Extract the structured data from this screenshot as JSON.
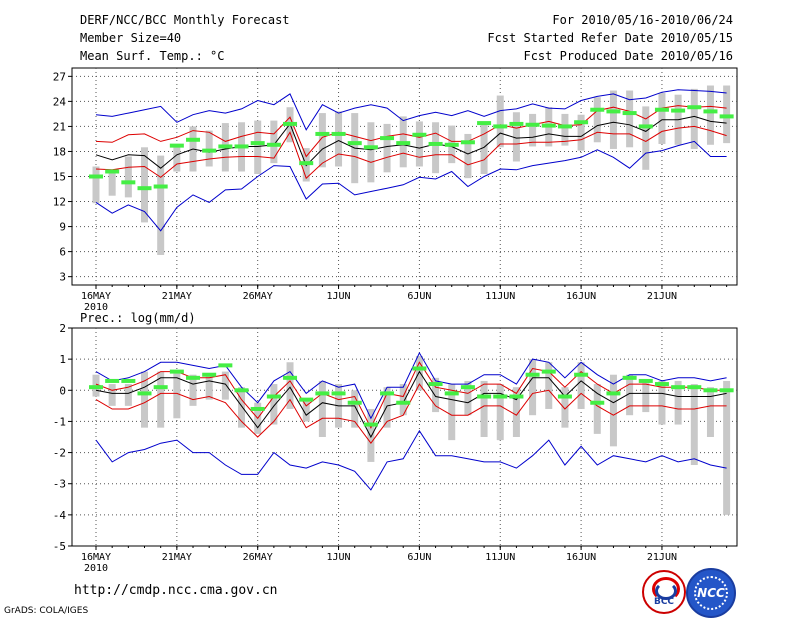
{
  "header": {
    "left_line1": "DERF/NCC/BCC Monthly Forecast",
    "left_line2": "Member Size=40",
    "left_line3": "Mean Surf. Temp.: °C",
    "right_line1": "For 2010/05/16-2010/06/24",
    "right_line2": "Fcst Started Refer Date 2010/05/15",
    "right_line3": "Fcst Produced Date 2010/05/16"
  },
  "panel2_label": "Prec.: log(mm/d)",
  "footer": {
    "url": "http://cmdp.ncc.cma.gov.cn",
    "grads": "GrADS: COLA/IGES",
    "logo1_text": "BCC",
    "logo2_text": "NCC"
  },
  "colors": {
    "mean": "#000000",
    "ensemble": "#dd0000",
    "extreme": "#0000cc",
    "obs_green": "#44ee44",
    "spread_bar": "#c8c8c8"
  },
  "chart_data": [
    {
      "type": "line",
      "title": "Mean Surf. Temp.: °C",
      "x_tick_labels": [
        "16MAY",
        "21MAY",
        "26MAY",
        "1JUN",
        "6JUN",
        "11JUN",
        "16JUN",
        "21JUN"
      ],
      "x_year_label": "2010",
      "x_days": 40,
      "ylim": [
        2,
        28
      ],
      "y_ticks": [
        3,
        6,
        9,
        12,
        15,
        18,
        21,
        24,
        27
      ],
      "series": [
        {
          "name": "max",
          "values": [
            22.4,
            22.2,
            22.6,
            23,
            23.4,
            21.5,
            22.4,
            22.9,
            22.6,
            23.1,
            24.1,
            23.6,
            24.9,
            20.6,
            23.6,
            22.6,
            23.2,
            23.6,
            23.2,
            21.7,
            22.3,
            22.7,
            22.3,
            22.9,
            22.2,
            22.9,
            23.1,
            23.7,
            23.2,
            23.1,
            24.1,
            24.6,
            24.9,
            24.2,
            24.4,
            25.1,
            25.4,
            25.3,
            25.2,
            25
          ]
        },
        {
          "name": "upper",
          "values": [
            19.2,
            19.1,
            20,
            20.1,
            19.2,
            19.7,
            20.5,
            20.3,
            19.2,
            19.8,
            20.3,
            20.1,
            22.1,
            17.4,
            19.7,
            20.3,
            19.8,
            19.3,
            19.8,
            20.1,
            19.7,
            20.2,
            19.2,
            19.2,
            20.1,
            21.2,
            20.8,
            21.2,
            21.6,
            21.1,
            21.2,
            22.9,
            23.3,
            22.8,
            21.9,
            23.2,
            23.5,
            23.3,
            23.4,
            23.2
          ]
        },
        {
          "name": "mean",
          "values": [
            17.6,
            17,
            17.6,
            17.5,
            16,
            17.6,
            18.3,
            17.9,
            18.3,
            18.6,
            18.6,
            18.8,
            21.3,
            16.3,
            18.3,
            19.3,
            18.4,
            18.2,
            18.6,
            18.8,
            18.4,
            18.9,
            18.6,
            17.7,
            18.5,
            20.2,
            19.6,
            19.7,
            20.1,
            19.8,
            19.8,
            21.1,
            21.5,
            21.2,
            20.4,
            21.8,
            21.8,
            22.2,
            21.6,
            21.4
          ]
        },
        {
          "name": "lower",
          "values": [
            15.9,
            15.8,
            16.1,
            16.2,
            14.9,
            16.5,
            16.8,
            17.1,
            17.3,
            17.4,
            17.4,
            17.2,
            20.3,
            14.8,
            16.6,
            17.7,
            17.4,
            16.7,
            17.3,
            17.8,
            17.3,
            17.6,
            17.6,
            16.4,
            17,
            18.9,
            18.9,
            19.1,
            19.1,
            19.2,
            19.4,
            20.3,
            20.1,
            20.1,
            19.2,
            20.4,
            20.8,
            21,
            20.5,
            19.9
          ]
        },
        {
          "name": "min",
          "values": [
            11.9,
            10.6,
            11.6,
            10.8,
            8.5,
            11.3,
            12.8,
            11.9,
            13.4,
            13.5,
            15,
            16.3,
            16.2,
            12.3,
            14.1,
            14.2,
            12.8,
            13.2,
            13.6,
            14,
            14.9,
            14.7,
            15.6,
            13.8,
            15,
            15.9,
            15.8,
            16.3,
            16.6,
            16.9,
            17.3,
            18.2,
            17.3,
            16,
            17.8,
            18.1,
            18.7,
            19.2,
            17.4,
            17.4
          ]
        },
        {
          "name": "obs",
          "values": [
            15,
            15.6,
            14.3,
            13.6,
            13.8,
            18.7,
            19.4,
            18.1,
            18.6,
            18.6,
            19,
            18.8,
            21.3,
            16.6,
            20.1,
            20.1,
            19,
            18.5,
            19.6,
            19,
            20,
            18.9,
            18.8,
            19.1,
            21.4,
            21,
            21.3,
            21.2,
            21.1,
            21,
            21.5,
            23,
            22.8,
            22.6,
            21,
            23,
            22.9,
            23.3,
            22.8,
            22.2
          ]
        },
        {
          "name": "bar_top",
          "values": [
            16.2,
            15.8,
            17.4,
            18.5,
            17.5,
            18.8,
            21,
            20.5,
            21.4,
            21.5,
            21.7,
            21.7,
            23.3,
            18.4,
            22.6,
            22.8,
            22.6,
            21.5,
            21.3,
            22.2,
            21.6,
            21.5,
            21.1,
            20.1,
            21.5,
            24.7,
            22.7,
            22.5,
            23.3,
            22.5,
            22.4,
            24.5,
            25.3,
            25.3,
            23.4,
            25,
            24.8,
            25.5,
            25.9,
            25.9
          ]
        },
        {
          "name": "bar_bottom",
          "values": [
            11.8,
            12.7,
            12.5,
            9.5,
            5.6,
            15.6,
            15.6,
            16.2,
            15.6,
            15.6,
            15.3,
            16.6,
            19.1,
            14.4,
            16.1,
            16.2,
            14.2,
            14.3,
            15.5,
            16.1,
            16.2,
            15.4,
            16.6,
            14.8,
            15.3,
            18.5,
            16.8,
            18.6,
            18.6,
            18.7,
            18.1,
            19.1,
            18.3,
            18.5,
            15.8,
            18.9,
            18.8,
            18.3,
            18.8,
            19
          ]
        }
      ]
    },
    {
      "type": "line",
      "title": "Prec.: log(mm/d)",
      "x_tick_labels": [
        "16MAY",
        "21MAY",
        "26MAY",
        "1JUN",
        "6JUN",
        "11JUN",
        "16JUN",
        "21JUN"
      ],
      "x_year_label": "2010",
      "x_days": 40,
      "ylim": [
        -5,
        2
      ],
      "y_ticks": [
        -5,
        -4,
        -3,
        -2,
        -1,
        0,
        1,
        2
      ],
      "series": [
        {
          "name": "max",
          "values": [
            0.6,
            0.3,
            0.4,
            0.6,
            0.9,
            0.9,
            0.8,
            0.7,
            0.8,
            0.1,
            -0.4,
            0.3,
            0.6,
            -0.1,
            0.3,
            0.1,
            0.2,
            -0.9,
            0.1,
            0.1,
            1.2,
            0.3,
            0.2,
            0.2,
            0.5,
            0.5,
            0.2,
            1,
            0.9,
            0.4,
            0.9,
            0.5,
            0.2,
            0.5,
            0.5,
            0.3,
            0.4,
            0.4,
            0.3,
            0.4
          ]
        },
        {
          "name": "upper",
          "values": [
            0.2,
            0,
            0.1,
            0.3,
            0.6,
            0.6,
            0.4,
            0.4,
            0.5,
            -0.3,
            -0.9,
            -0.2,
            0.3,
            -0.5,
            -0.1,
            -0.3,
            -0.2,
            -1.2,
            -0.1,
            -0.2,
            0.9,
            0.1,
            0,
            -0.1,
            0.2,
            0.2,
            -0.1,
            0.7,
            0.6,
            0.1,
            0.6,
            0.2,
            -0.1,
            0.2,
            0.2,
            0.1,
            0.1,
            0.1,
            0,
            0
          ]
        },
        {
          "name": "mean",
          "values": [
            0,
            -0.1,
            -0.1,
            0.1,
            0.4,
            0.4,
            0.2,
            0.3,
            0.2,
            -0.5,
            -1.2,
            -0.5,
            0.1,
            -0.8,
            -0.4,
            -0.5,
            -0.5,
            -1.5,
            -0.5,
            -0.4,
            0.6,
            -0.2,
            -0.3,
            -0.4,
            -0.1,
            -0.1,
            -0.3,
            0.4,
            0.4,
            -0.2,
            0.3,
            -0.1,
            -0.4,
            -0.1,
            -0.1,
            -0.1,
            -0.2,
            -0.2,
            -0.2,
            -0.1
          ]
        },
        {
          "name": "lower",
          "values": [
            -0.3,
            -0.6,
            -0.6,
            -0.4,
            -0.1,
            -0.1,
            -0.3,
            -0.2,
            -0.4,
            -1,
            -1.5,
            -1,
            -0.3,
            -1.2,
            -0.9,
            -0.9,
            -1,
            -1.7,
            -1,
            -0.8,
            0.2,
            -0.5,
            -0.8,
            -0.8,
            -0.5,
            -0.5,
            -0.8,
            -0.1,
            0,
            -0.6,
            -0.1,
            -0.5,
            -0.8,
            -0.5,
            -0.5,
            -0.5,
            -0.6,
            -0.6,
            -0.5,
            -0.5
          ]
        },
        {
          "name": "min",
          "values": [
            -1.6,
            -2.3,
            -2,
            -1.9,
            -1.7,
            -1.6,
            -2,
            -2,
            -2.4,
            -2.7,
            -2.7,
            -2,
            -2.4,
            -2.5,
            -2.3,
            -2.4,
            -2.6,
            -3.2,
            -2.3,
            -2.2,
            -1.3,
            -2.1,
            -2.1,
            -2.2,
            -2.3,
            -2.3,
            -2.5,
            -2.1,
            -1.6,
            -2.4,
            -1.8,
            -2.4,
            -2.1,
            -2.2,
            -2.3,
            -2.1,
            -2.3,
            -2.2,
            -2.4,
            -2.5
          ]
        },
        {
          "name": "obs",
          "values": [
            0.1,
            0.3,
            0.3,
            -0.1,
            0.1,
            0.6,
            0.4,
            0.5,
            0.8,
            0,
            -0.6,
            -0.2,
            0.4,
            -0.3,
            -0.1,
            -0.1,
            -0.4,
            -1.1,
            -0.1,
            -0.4,
            0.7,
            0.2,
            -0.1,
            0.1,
            -0.2,
            -0.2,
            -0.2,
            0.5,
            0.6,
            -0.2,
            0.5,
            -0.4,
            -0.1,
            0.4,
            0.3,
            0.2,
            0.1,
            0.1,
            0,
            0
          ]
        },
        {
          "name": "bar_top",
          "values": [
            0.5,
            0.2,
            0.2,
            0.6,
            0.6,
            0.6,
            0.5,
            0.5,
            0.6,
            0.1,
            -0.4,
            0.2,
            0.9,
            -0.3,
            0.3,
            0.2,
            0,
            -0.6,
            0.1,
            0.2,
            1.1,
            0.4,
            0.2,
            0.3,
            0.3,
            0.2,
            0.1,
            1,
            0.9,
            0.1,
            0.9,
            0.2,
            0.5,
            0.5,
            0.3,
            0.3,
            0.3,
            0.2,
            0.1,
            0.3
          ]
        },
        {
          "name": "bar_bottom",
          "values": [
            -0.2,
            -0.5,
            -0.5,
            -1.2,
            -1.2,
            -0.9,
            -0.5,
            -0.3,
            -0.3,
            -1.2,
            -1.4,
            -1.1,
            -0.6,
            -1,
            -1.5,
            -1.2,
            -1.2,
            -2.3,
            -1.2,
            -0.8,
            0,
            -0.7,
            -1.6,
            -0.8,
            -1.5,
            -1.6,
            -1.5,
            -0.8,
            -0.6,
            -1.2,
            -0.6,
            -1.4,
            -1.8,
            -0.8,
            -0.7,
            -1.1,
            -1.1,
            -2.4,
            -1.5,
            -4
          ]
        }
      ]
    }
  ]
}
